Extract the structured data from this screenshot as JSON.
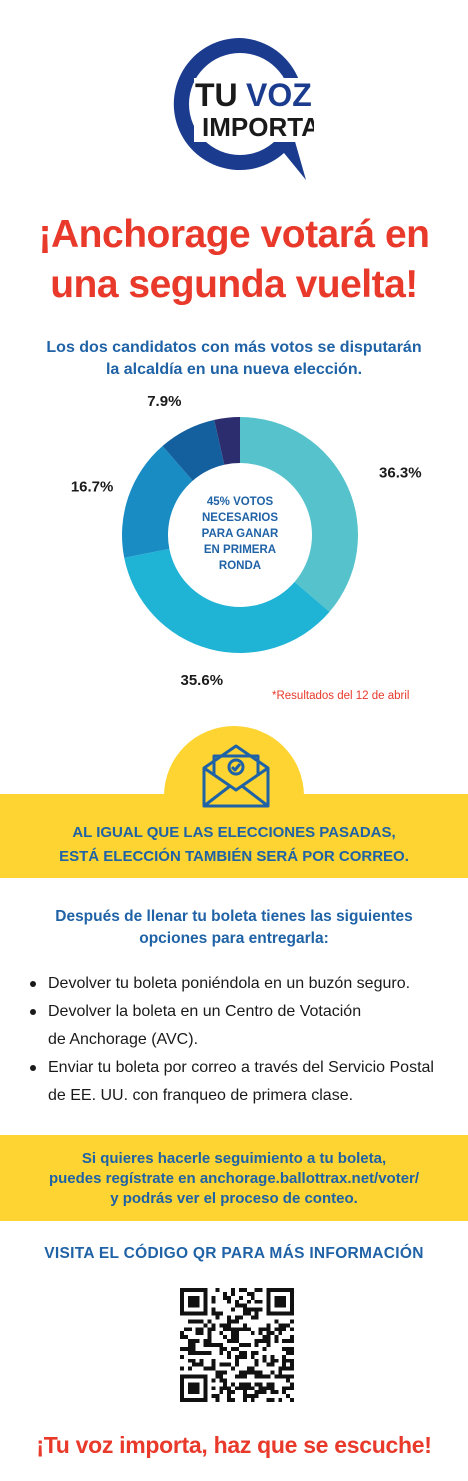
{
  "logo": {
    "line1a": "TU",
    "line1b": "VOZ",
    "line2": "IMPORTA"
  },
  "headline": {
    "line1": "¡Anchorage votará en",
    "line2": "una segunda vuelta!"
  },
  "subhead": {
    "line1": "Los dos candidatos con más votos se disputarán",
    "line2": "la alcaldía en una nueva elección."
  },
  "chart_data": {
    "type": "pie",
    "labels": [
      "36.3%",
      "35.6%",
      "16.7%",
      "7.9%",
      "3.5%"
    ],
    "values": [
      36.3,
      35.6,
      16.7,
      7.9,
      3.5
    ],
    "colors": [
      "#56c2cc",
      "#1fb3d5",
      "#1a8cc4",
      "#14609f",
      "#2c2d6e"
    ],
    "center_text": [
      "45% VOTOS",
      "NECESARIOS",
      "PARA GANAR",
      "EN PRIMERA",
      "RONDA"
    ]
  },
  "footnote": "*Resultados del 12 de abril",
  "icon": "envelope-icon",
  "band1": {
    "line1": "AL IGUAL QUE LAS ELECCIONES PASADAS,",
    "line2": "ESTÁ ELECCIÓN TAMBIÉN SERÁ POR CORREO."
  },
  "options": {
    "intro_line1": "Después de llenar tu boleta tienes las siguientes",
    "intro_line2": "opciones para entregarla:",
    "items": [
      {
        "line1": "Devolver tu boleta poniéndola en un buzón seguro.",
        "line2": ""
      },
      {
        "line1": "Devolver la boleta en un Centro de Votación",
        "line2": "de Anchorage (AVC)."
      },
      {
        "line1": "Enviar tu boleta por correo a través del Servicio Postal",
        "line2": "de EE. UU. con franqueo de primera clase."
      }
    ]
  },
  "band2": {
    "line1": "Si quieres hacerle seguimiento a tu boleta,",
    "line2": "puedes regístrate en anchorage.ballottrax.net/voter/",
    "line3": "y podrás ver el proceso de conteo."
  },
  "qr_title": "VISITA EL CÓDIGO QR PARA MÁS INFORMACIÓN",
  "closing": "¡Tu voz importa, haz que se escuche!",
  "colors": {
    "red": "#e8392b",
    "blue": "#1f62a6",
    "yellow": "#fdd431",
    "navy": "#1b3c8e"
  }
}
